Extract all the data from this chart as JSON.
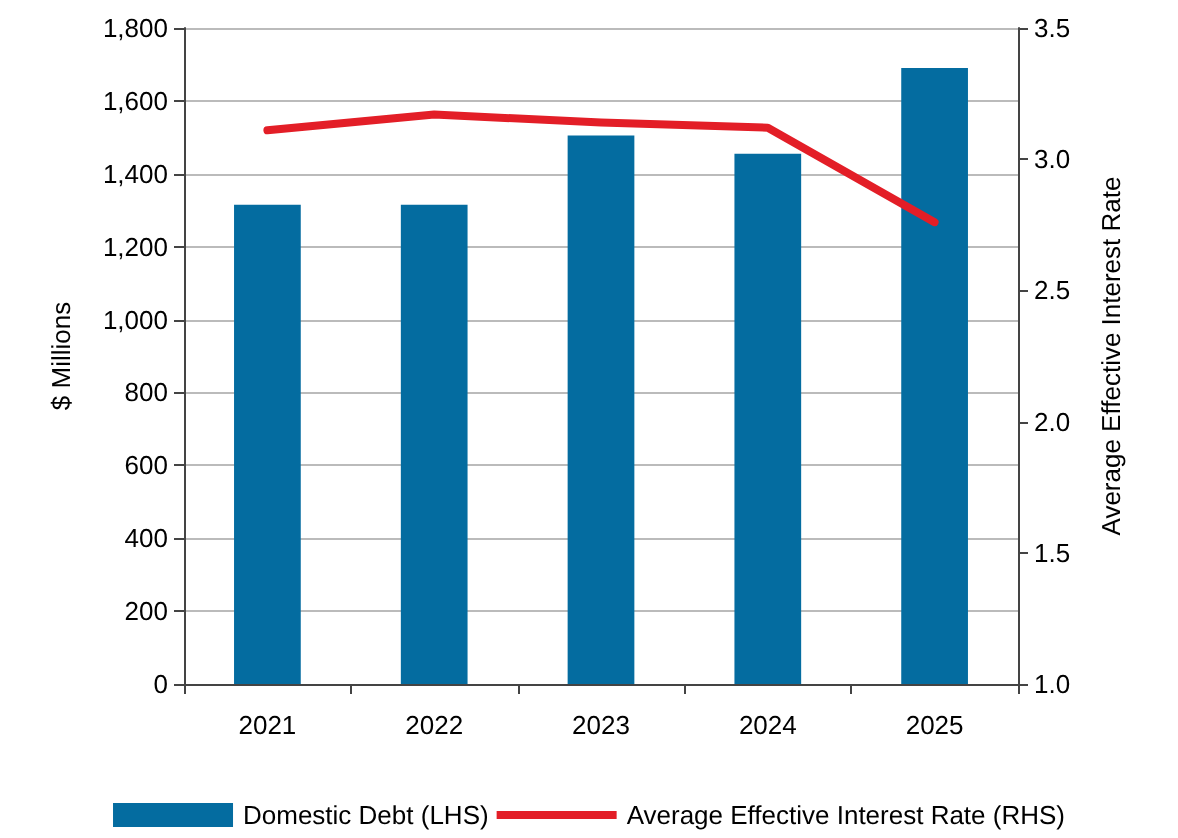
{
  "chart_data": {
    "type": "bar",
    "categories": [
      "2021",
      "2022",
      "2023",
      "2024",
      "2025"
    ],
    "series": [
      {
        "name": "Domestic Debt (LHS)",
        "color": "#046ca0",
        "values": [
          1315,
          1315,
          1505,
          1455,
          1690
        ]
      },
      {
        "name": "Average Effective Interest Rate (RHS)",
        "type": "line",
        "axis": "y2",
        "color": "#e31e27",
        "values": [
          3.11,
          3.17,
          3.14,
          3.12,
          2.76
        ]
      }
    ],
    "ylabel": "$ Millions",
    "y2label": "Average Effective Interest Rate",
    "ylim": [
      0,
      1800
    ],
    "yticks": [
      0,
      200,
      400,
      600,
      800,
      {
        "value": 1000,
        "label": "1,000"
      },
      {
        "value": 1200,
        "label": "1,200"
      },
      {
        "value": 1400,
        "label": "1,400"
      },
      {
        "value": 1600,
        "label": "1,600"
      },
      {
        "value": 1800,
        "label": "1,800"
      }
    ],
    "y2lim": [
      1.0,
      3.5
    ],
    "y2ticks": [
      {
        "value": 1,
        "label": "1.0"
      },
      1.5,
      {
        "value": 2,
        "label": "2.0"
      },
      2.5,
      {
        "value": 3,
        "label": "3.0"
      },
      3.5
    ],
    "grid": "y",
    "legend": "bottom",
    "marker": "none",
    "line_style": "solid"
  }
}
